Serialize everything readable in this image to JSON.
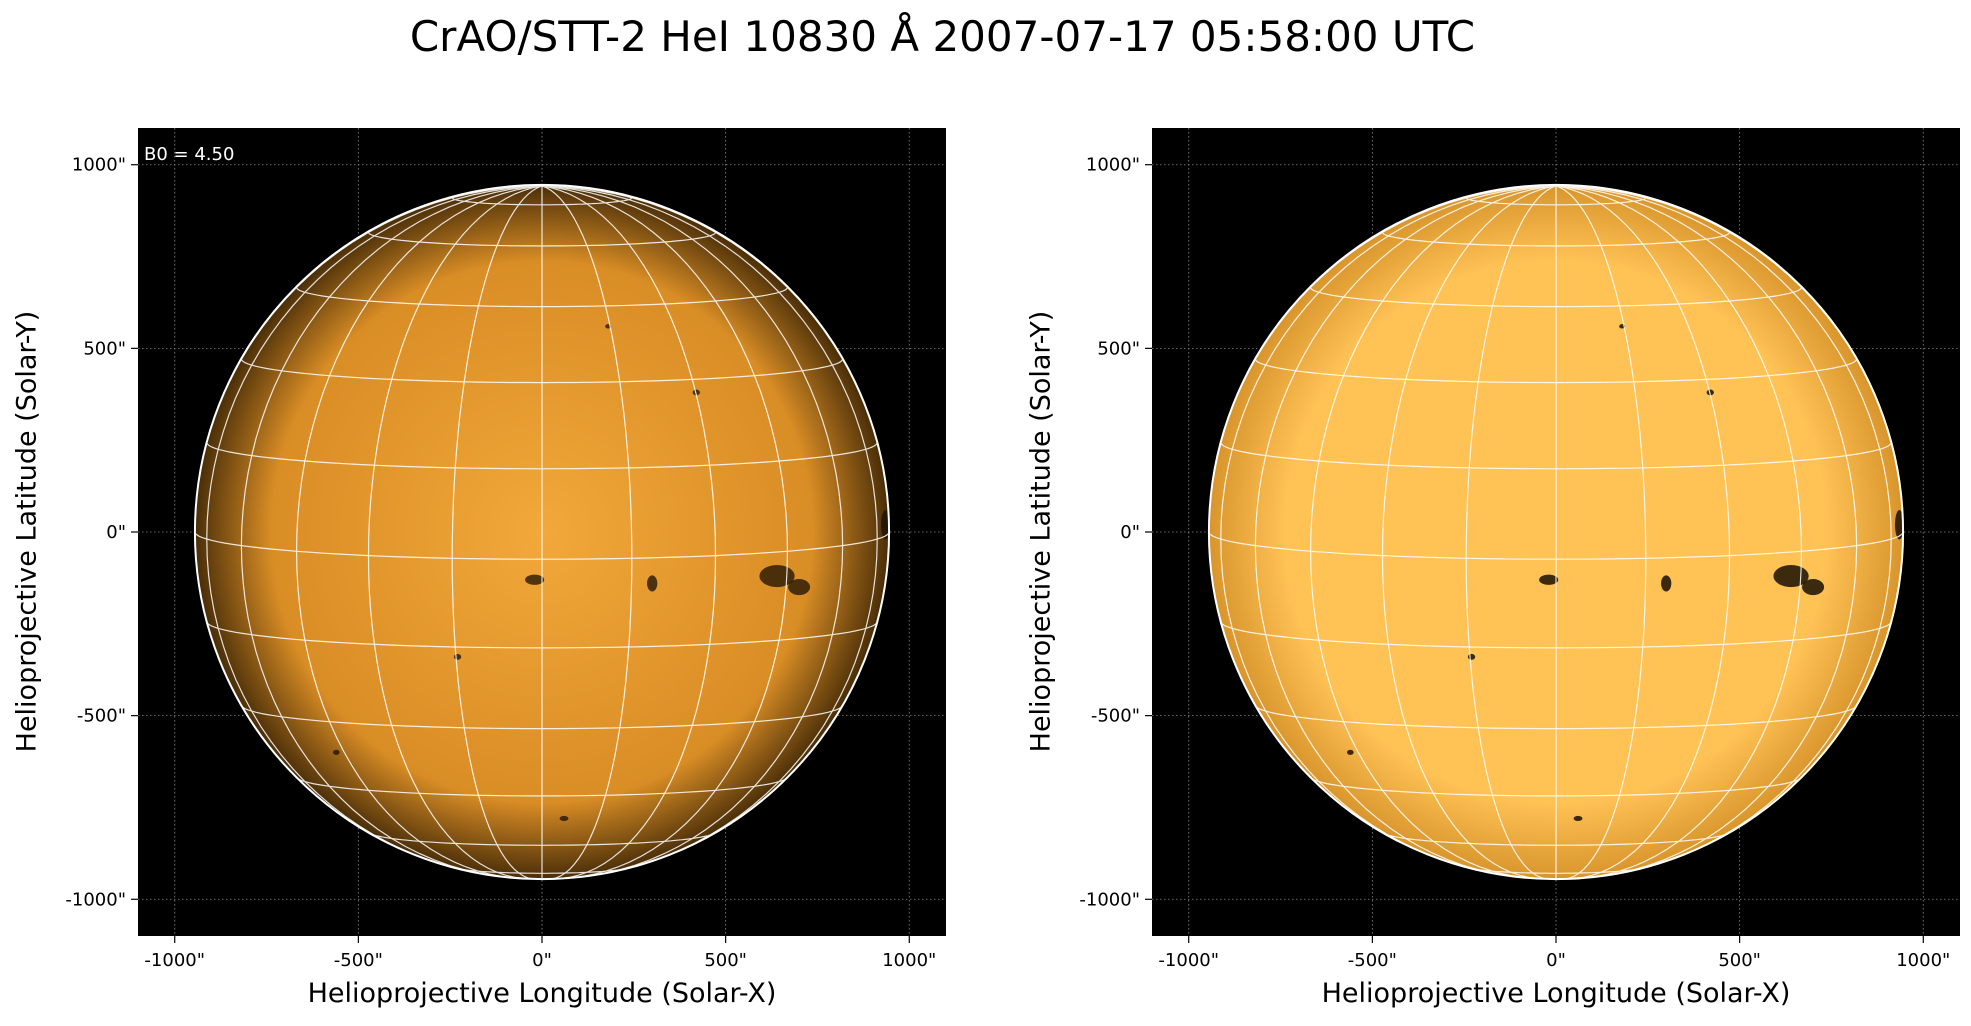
{
  "title": "CrAO/STT-2 HeI 10830 Å 2007-07-17 05:58:00 UTC",
  "colors": {
    "background": "#000000",
    "disk_center_left": "#f2a83a",
    "disk_edge_left": "#4a2e08",
    "disk_center_right": "#ffc255",
    "disk_edge_right": "#d8952c",
    "grid": "#ffffff",
    "spot": "#1a0f02"
  },
  "panels": [
    {
      "id": "left",
      "annotation": "B0 = 4.50",
      "xlabel": "Helioprojective Longitude (Solar-X)",
      "ylabel": "Helioprojective Latitude (Solar-Y)",
      "xticks": [
        "-1000\"",
        "-500\"",
        "0\"",
        "500\"",
        "1000\""
      ],
      "yticks": [
        "1000\"",
        "500\"",
        "0\"",
        "-500\"",
        "-1000\""
      ]
    },
    {
      "id": "right",
      "annotation": "",
      "xlabel": "Helioprojective Longitude (Solar-X)",
      "ylabel": "Helioprojective Latitude (Solar-Y)",
      "xticks": [
        "-1000\"",
        "-500\"",
        "0\"",
        "500\"",
        "1000\""
      ],
      "yticks": [
        "1000\"",
        "500\"",
        "0\"",
        "-500\"",
        "-1000\""
      ]
    }
  ],
  "solar_radius_arcsec": 945,
  "axis_range_arcsec": [
    -1100,
    1100
  ],
  "grid_spacing_deg": 15,
  "b0_deg": 4.5
}
